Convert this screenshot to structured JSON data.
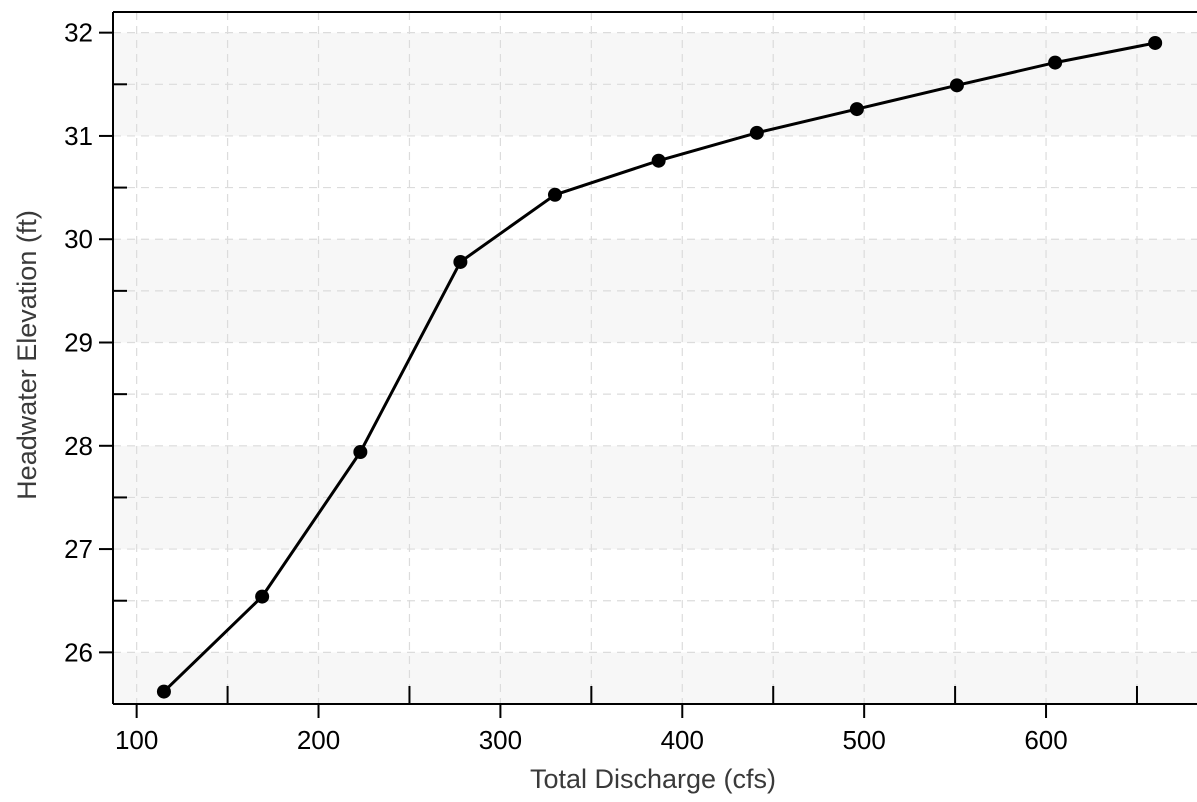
{
  "chart_data": {
    "type": "line",
    "title": "",
    "xlabel": "Total Discharge (cfs)",
    "ylabel": "Headwater Elevation (ft)",
    "xlim": [
      87,
      683
    ],
    "ylim": [
      25.5,
      32.2
    ],
    "x_ticks": [
      100,
      200,
      300,
      400,
      500,
      600
    ],
    "x_minor_ticks": [
      150,
      250,
      350,
      450,
      550,
      650
    ],
    "y_ticks": [
      26,
      27,
      28,
      29,
      30,
      31,
      32
    ],
    "y_minor_ticks": [
      25.5,
      26.5,
      27.5,
      28.5,
      29.5,
      30.5,
      31.5
    ],
    "grid": true,
    "legend": "none",
    "series": [
      {
        "color": "#000000",
        "marker": "filled-circle",
        "x": [
          115,
          169,
          223,
          278,
          330,
          387,
          441,
          496,
          551,
          605,
          660
        ],
        "y": [
          25.62,
          26.54,
          27.94,
          29.78,
          30.43,
          30.76,
          31.03,
          31.26,
          31.49,
          31.71,
          31.9
        ]
      }
    ],
    "colors": {
      "band_light": "#f7f7f7",
      "band_white": "#ffffff",
      "grid": "#dcdcdc",
      "axis": "#000000",
      "axis_title": "#3a3a3a"
    }
  }
}
